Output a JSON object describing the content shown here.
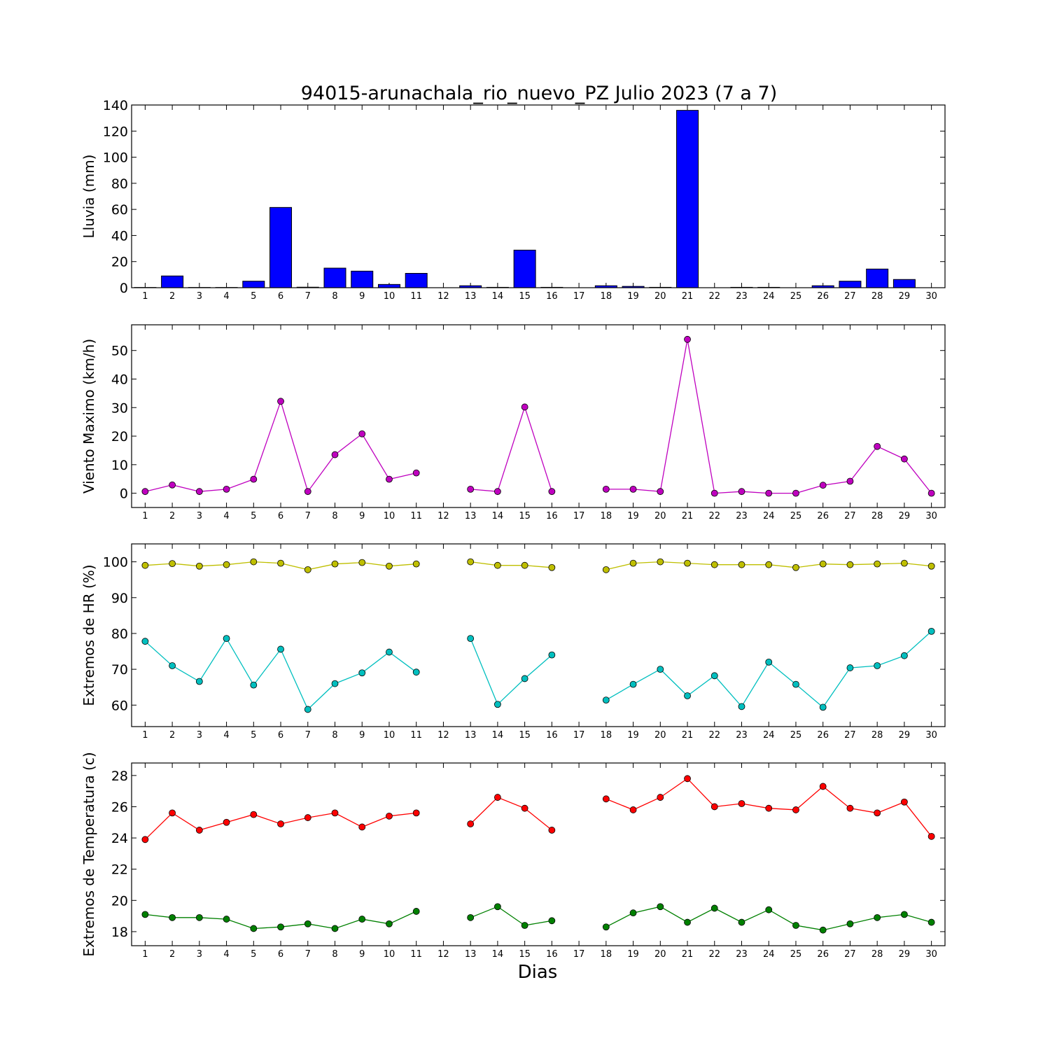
{
  "chart_data": {
    "title": "94015-arunachala_rio_nuevo_PZ Julio 2023  (7 a 7)",
    "xlabel": "Dias",
    "days": [
      1,
      2,
      3,
      4,
      5,
      6,
      7,
      8,
      9,
      10,
      11,
      12,
      13,
      14,
      15,
      16,
      17,
      18,
      19,
      20,
      21,
      22,
      23,
      24,
      25,
      26,
      27,
      28,
      29,
      30
    ],
    "colors": {
      "rain": "#0000ff",
      "wind": "#bf00bf",
      "hr_max": "#bfbf00",
      "hr_min": "#00bfbf",
      "temp_max": "#ff0000",
      "temp_min": "#008000"
    },
    "panels": [
      {
        "key": "rain",
        "type": "bar",
        "ylabel": "Lluvia (mm)",
        "ylim": [
          0,
          140
        ],
        "yticks": [
          0,
          20,
          40,
          60,
          80,
          100,
          120,
          140
        ],
        "series": [
          {
            "color_key": "rain",
            "values": [
              0.2,
              9,
              0.2,
              0.2,
              5,
              61.5,
              0.4,
              15,
              12.7,
              2.5,
              11,
              null,
              1.5,
              0.3,
              28.8,
              0.3,
              null,
              1.5,
              1,
              0.3,
              135.9,
              null,
              0.3,
              0.3,
              null,
              1.5,
              5,
              14.3,
              6.3,
              null
            ]
          }
        ]
      },
      {
        "key": "wind",
        "type": "line",
        "ylabel": "Viento Maximo (km/h)",
        "ylim": [
          -5,
          59
        ],
        "yticks": [
          0,
          10,
          20,
          30,
          40,
          50
        ],
        "series": [
          {
            "color_key": "wind",
            "values": [
              0.6,
              2.9,
              0.6,
              1.4,
              4.9,
              32.2,
              0.6,
              13.5,
              20.8,
              4.9,
              7.1,
              null,
              1.4,
              0.6,
              30.2,
              0.6,
              null,
              1.4,
              1.4,
              0.6,
              53.9,
              0,
              0.6,
              0,
              0,
              2.8,
              4.2,
              16.4,
              12,
              0
            ]
          }
        ]
      },
      {
        "key": "hr",
        "type": "line",
        "ylabel": "Extremos de HR (%)",
        "ylim": [
          54,
          105
        ],
        "yticks": [
          60,
          70,
          80,
          90,
          100
        ],
        "series": [
          {
            "color_key": "hr_max",
            "values": [
              99,
              99.5,
              98.8,
              99.2,
              100,
              99.6,
              97.8,
              99.4,
              99.8,
              98.8,
              99.4,
              null,
              100,
              99,
              99,
              98.4,
              null,
              97.8,
              99.6,
              100,
              99.6,
              99.2,
              99.2,
              99.2,
              98.4,
              99.4,
              99.2,
              99.4,
              99.6,
              98.8
            ]
          },
          {
            "color_key": "hr_min",
            "values": [
              77.8,
              71,
              66.6,
              78.6,
              65.6,
              75.6,
              58.8,
              66,
              69,
              74.8,
              69.2,
              null,
              78.6,
              60.2,
              67.4,
              74,
              null,
              61.4,
              65.8,
              70,
              62.6,
              68.2,
              59.6,
              72,
              65.8,
              59.4,
              70.4,
              71,
              73.8,
              80.6
            ]
          }
        ]
      },
      {
        "key": "temp",
        "type": "line",
        "ylabel": "Extremos de Temperatura (c)",
        "ylim": [
          17.1,
          28.8
        ],
        "yticks": [
          18,
          20,
          22,
          24,
          26,
          28
        ],
        "series": [
          {
            "color_key": "temp_max",
            "values": [
              23.9,
              25.6,
              24.5,
              25,
              25.5,
              24.9,
              25.3,
              25.6,
              24.7,
              25.4,
              25.6,
              null,
              24.9,
              26.6,
              25.9,
              24.5,
              null,
              26.5,
              25.8,
              26.6,
              27.8,
              26,
              26.2,
              25.9,
              25.8,
              27.3,
              25.9,
              25.6,
              26.3,
              24.1
            ]
          },
          {
            "color_key": "temp_min",
            "values": [
              19.1,
              18.9,
              18.9,
              18.8,
              18.2,
              18.3,
              18.5,
              18.2,
              18.8,
              18.5,
              19.3,
              null,
              18.9,
              19.6,
              18.4,
              18.7,
              null,
              18.3,
              19.2,
              19.6,
              18.6,
              19.5,
              18.6,
              19.4,
              18.4,
              18.1,
              18.5,
              18.9,
              19.1,
              18.6
            ]
          }
        ]
      }
    ]
  }
}
